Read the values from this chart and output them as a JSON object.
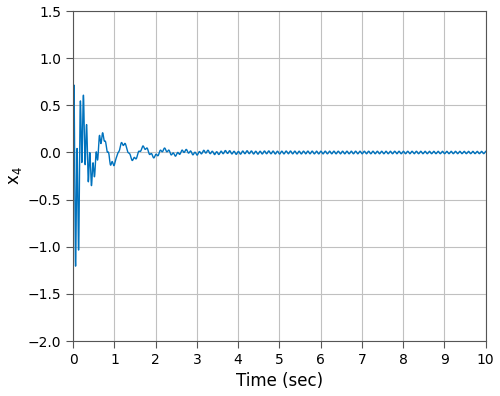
{
  "xlabel": "Time (sec)",
  "ylabel": "x$_4$",
  "xlim": [
    0,
    10
  ],
  "ylim": [
    -2,
    1.5
  ],
  "yticks": [
    -2,
    -1.5,
    -1,
    -0.5,
    0,
    0.5,
    1,
    1.5
  ],
  "xticks": [
    0,
    1,
    2,
    3,
    4,
    5,
    6,
    7,
    8,
    9,
    10
  ],
  "line_color": "#0072BD",
  "line_width": 1.0,
  "background_color": "#FFFFFF",
  "grid_color": "#C0C0C0",
  "figsize": [
    5.0,
    3.96
  ],
  "dpi": 100,
  "xlabel_fontsize": 12,
  "ylabel_fontsize": 12,
  "tick_fontsize": 10
}
